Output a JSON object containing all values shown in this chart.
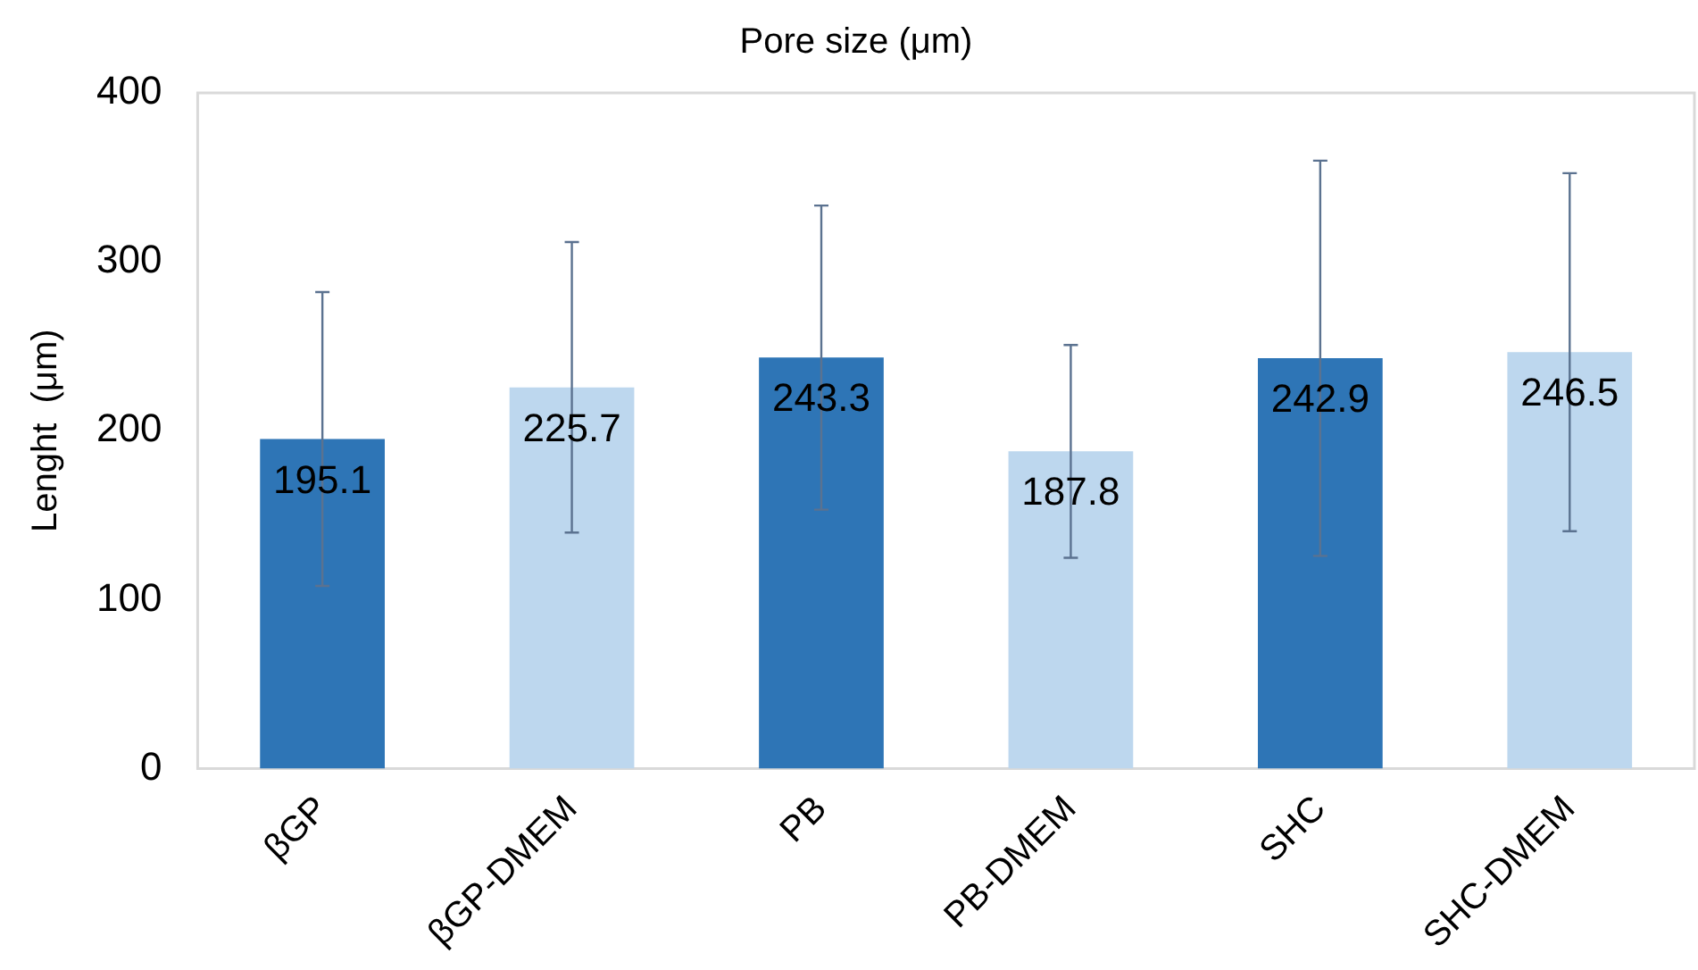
{
  "chart_data": {
    "type": "bar",
    "title": "Pore size (μm)",
    "ylabel": "Lenght  (μm)",
    "categories": [
      "βGP",
      "βGP-DMEM",
      "PB",
      "PB-DMEM",
      "SHC",
      "SHC-DMEM"
    ],
    "values": [
      195.1,
      225.7,
      243.3,
      187.8,
      242.9,
      246.5
    ],
    "colors": [
      "#2e75b6",
      "#bdd7ee",
      "#2e75b6",
      "#bdd7ee",
      "#2e75b6",
      "#bdd7ee"
    ],
    "errors": [
      87,
      86,
      90,
      63,
      117,
      106
    ],
    "ylim": [
      0,
      400
    ],
    "yticks": [
      0,
      100,
      200,
      300,
      400
    ],
    "grid": false,
    "legend": false,
    "data_labels": true
  }
}
